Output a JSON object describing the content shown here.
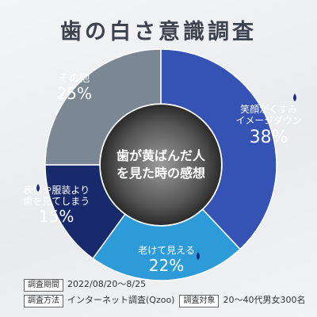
{
  "title": "歯の白さ意識調査",
  "chart_data": {
    "type": "pie",
    "variant": "donut",
    "center_label": [
      "歯が黄ばんだ人",
      "を見た時の感想"
    ],
    "slices": [
      {
        "label": [
          "笑顔がくすみ",
          "イメージダウン"
        ],
        "value": 38,
        "pct": "38%",
        "color": "#3453b5"
      },
      {
        "label": [
          "老けて見える"
        ],
        "value": 22,
        "pct": "22%",
        "color": "#2e9bd9"
      },
      {
        "label": [
          "表情や服装より",
          "歯を見てしまう"
        ],
        "value": 15,
        "pct": "15%",
        "color": "#182a6c"
      },
      {
        "label": [
          "その他"
        ],
        "value": 25,
        "pct": "25%",
        "color": "#7b8793"
      }
    ]
  },
  "footer": {
    "period_tag": "調査期間",
    "period_value": "2022/08/20〜8/25",
    "method_tag": "調査方法",
    "method_value": "インターネット調査(Qzoo)",
    "target_tag": "調査対象",
    "target_value": "20〜40代男女300名"
  },
  "colors": {
    "title": "#3c4250",
    "label_dark": "#1a2c80",
    "label_light": "#ffffff"
  }
}
